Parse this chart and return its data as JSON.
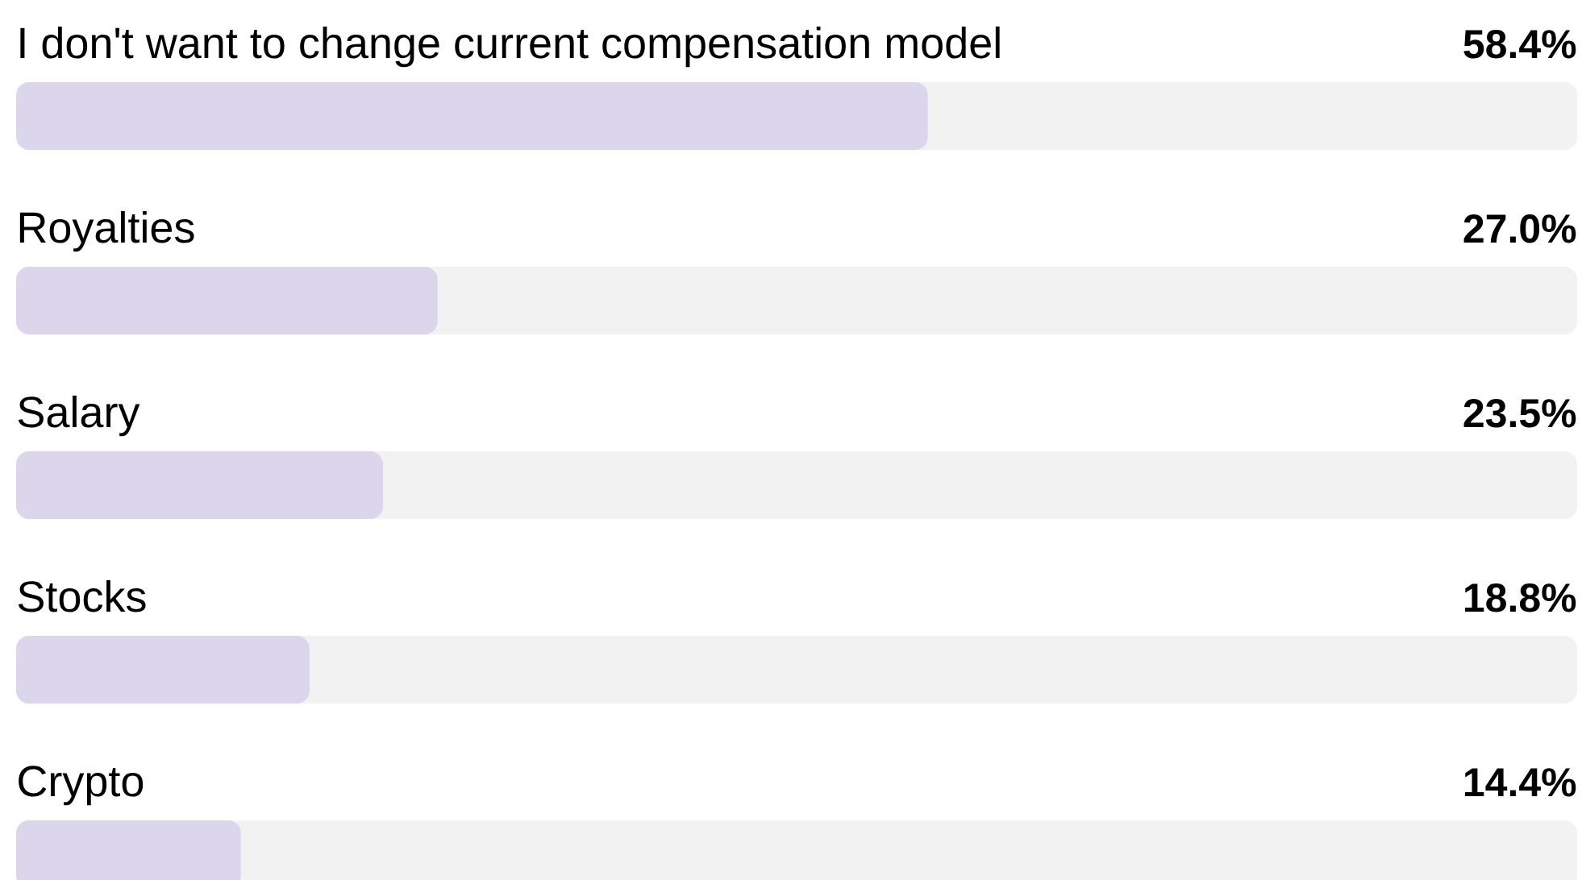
{
  "chart_data": {
    "type": "bar",
    "orientation": "horizontal",
    "categories": [
      "I don't want to change current compensation model",
      "Royalties",
      "Salary",
      "Stocks",
      "Crypto"
    ],
    "values": [
      58.4,
      27.0,
      23.5,
      18.8,
      14.4
    ],
    "value_labels": [
      "58.4%",
      "27.0%",
      "23.5%",
      "18.8%",
      "14.4%"
    ],
    "color": "#dcd6ec",
    "xlim": [
      0,
      100
    ]
  }
}
